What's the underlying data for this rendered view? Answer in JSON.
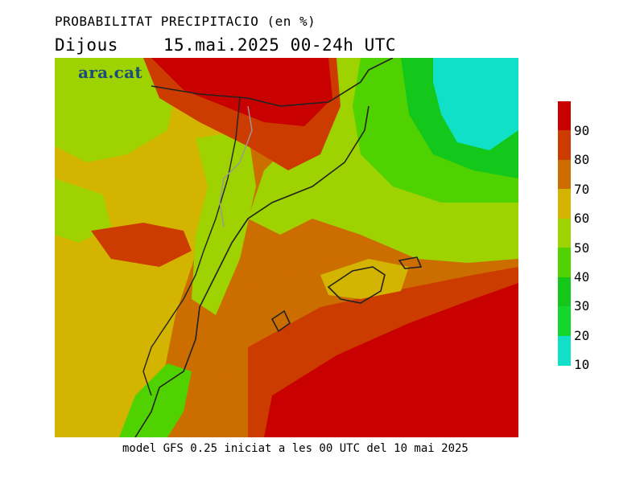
{
  "header": {
    "title": "PROBABILITAT PRECIPITACIO (en %)",
    "day": "Dijous",
    "period": "15.mai.2025 00-24h UTC"
  },
  "logo": {
    "text": "ara.cat"
  },
  "footer": {
    "model_run": "model GFS 0.25 iniciat a les 00 UTC del 10 mai 2025"
  },
  "legend": {
    "labels": [
      "90",
      "80",
      "70",
      "60",
      "50",
      "40",
      "30",
      "20",
      "10"
    ],
    "colors": [
      "#c80000",
      "#cc3b00",
      "#cc6d00",
      "#d3b400",
      "#9ed200",
      "#4fd200",
      "#13c81b",
      "#13d72e",
      "#11e0c8"
    ]
  },
  "map": {
    "variable": "precipitation probability",
    "units": "%",
    "region": "Catalonia, Valencia, Balearic Islands and southern France"
  }
}
